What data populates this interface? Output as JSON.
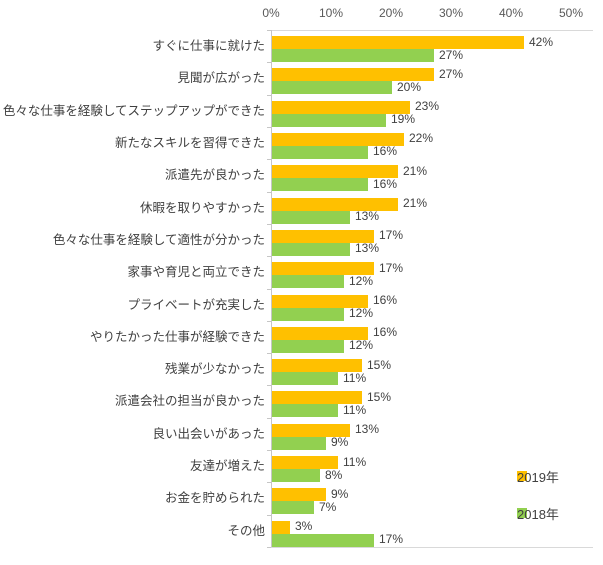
{
  "chart_data": {
    "type": "bar",
    "orientation": "horizontal",
    "title": "",
    "xlabel": "",
    "ylabel": "",
    "value_suffix": "%",
    "grid": false,
    "categories": [
      "すぐに仕事に就けた",
      "見聞が広がった",
      "色々な仕事を経験してステップアップができた",
      "新たなスキルを習得できた",
      "派遣先が良かった",
      "休暇を取りやすかった",
      "色々な仕事を経験して適性が分かった",
      "家事や育児と両立できた",
      "プライベートが充実した",
      "やりたかった仕事が経験できた",
      "残業が少なかった",
      "派遣会社の担当が良かった",
      "良い出会いがあった",
      "友達が増えた",
      "お金を貯められた",
      "その他"
    ],
    "series": [
      {
        "key": "2019",
        "name": "2019年",
        "color": "#FFC000",
        "values": [
          42,
          27,
          23,
          22,
          21,
          21,
          17,
          17,
          16,
          16,
          15,
          15,
          13,
          11,
          9,
          3
        ]
      },
      {
        "key": "2018",
        "name": "2018年",
        "color": "#92D050",
        "values": [
          27,
          20,
          19,
          16,
          16,
          13,
          13,
          12,
          12,
          12,
          11,
          11,
          9,
          8,
          7,
          17
        ]
      }
    ],
    "axis": {
      "position": "top",
      "min": 0,
      "max": 50,
      "step": 10,
      "tick_labels": [
        "0%",
        "10%",
        "20%",
        "30%",
        "40%",
        "50%"
      ]
    },
    "legend": {
      "position": "right",
      "items": [
        "2019年",
        "2018年"
      ]
    },
    "style_colors": {
      "plot_border": "#D9D9D9",
      "axis_line": "#C6C6C6",
      "tick_text": "#595959",
      "label_text": "#404040",
      "background": "#FFFFFF"
    }
  }
}
